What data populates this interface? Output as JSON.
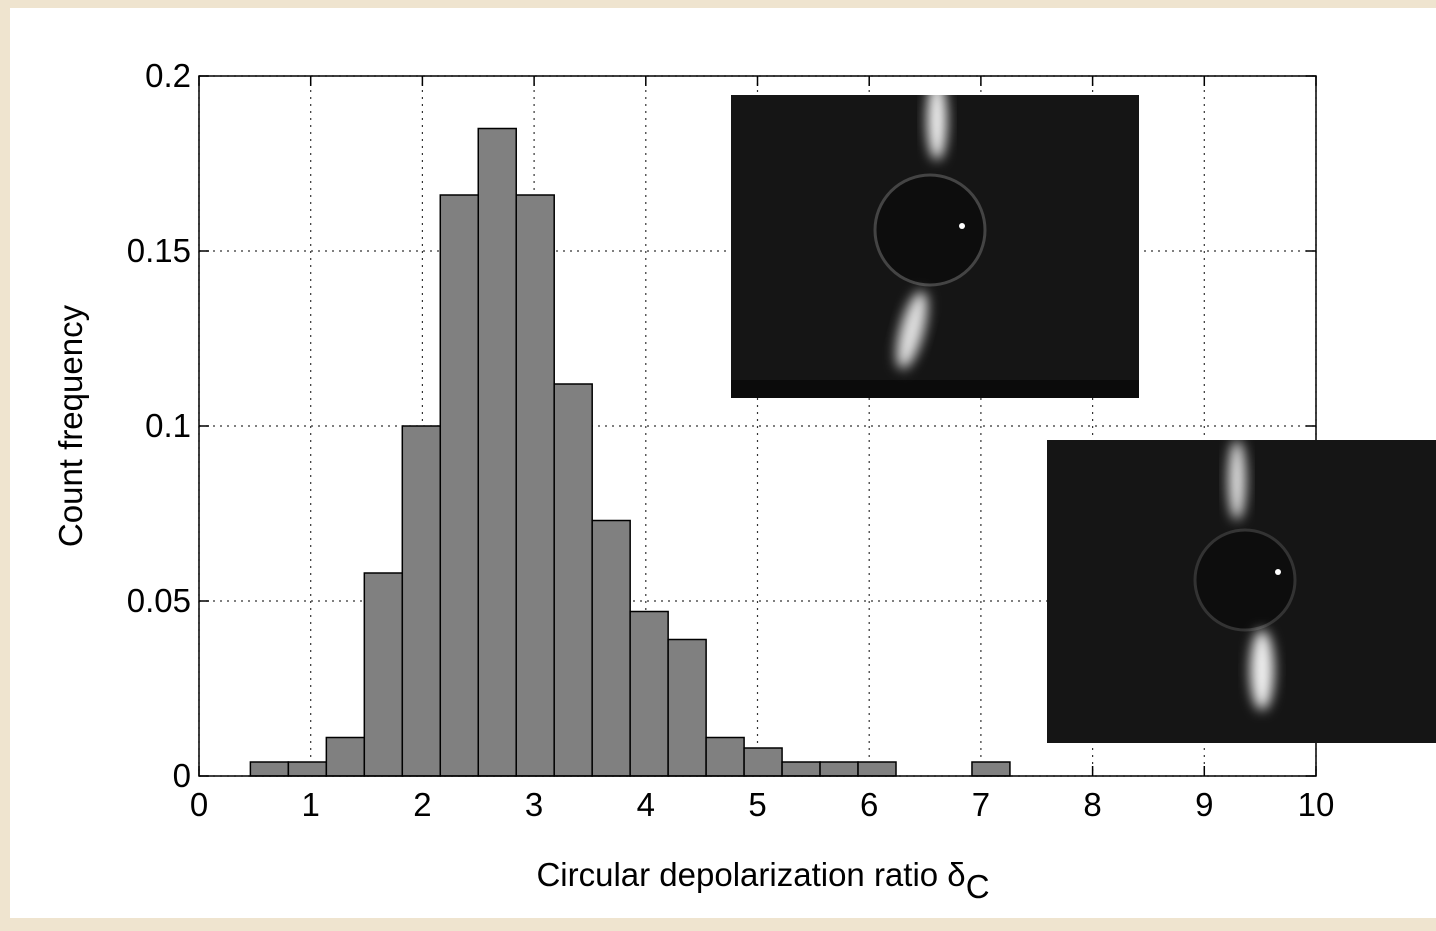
{
  "chart_data": {
    "type": "histogram",
    "xlabel": "Circular depolarization ratio δ",
    "xlabel_subscript": "C",
    "ylabel": "Count frequency",
    "bins": [
      0.46,
      0.8,
      1.14,
      1.48,
      1.82,
      2.16,
      2.5,
      2.84,
      3.18,
      3.52,
      3.86,
      4.2,
      4.54,
      4.88,
      5.22,
      5.56,
      5.9,
      6.24,
      6.58,
      6.92,
      7.26
    ],
    "values": [
      0.004,
      0.004,
      0.011,
      0.058,
      0.1,
      0.166,
      0.185,
      0.166,
      0.112,
      0.073,
      0.047,
      0.039,
      0.011,
      0.008,
      0.004,
      0.004,
      0.004,
      0,
      0,
      0.004
    ],
    "color": "#808080",
    "xlim": [
      0,
      10
    ],
    "xticks": [
      0,
      1,
      2,
      3,
      4,
      5,
      6,
      7,
      8,
      9,
      10
    ],
    "ylim": [
      0,
      0.2
    ],
    "yticks": [
      0,
      0.05,
      0.1,
      0.15,
      0.2
    ],
    "grid": true
  }
}
